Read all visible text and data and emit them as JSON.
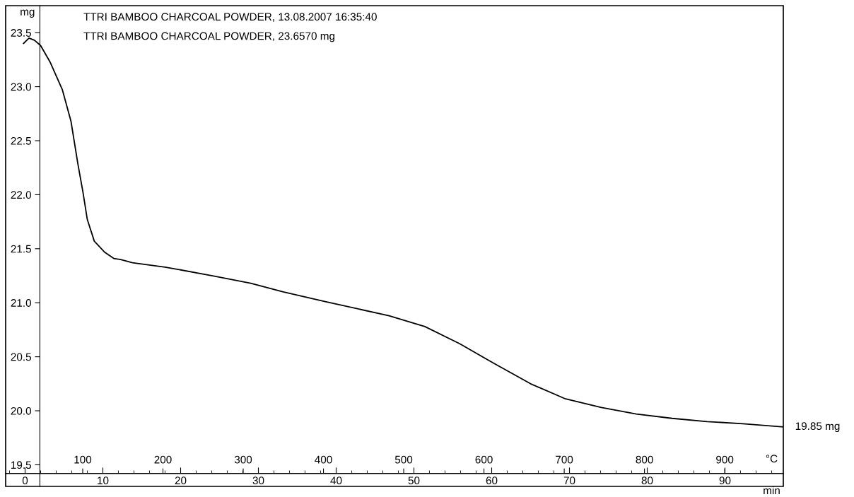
{
  "chart_data": {
    "type": "line",
    "ylabel": "mg",
    "xlabel": "min",
    "x2label": "°C",
    "xlim": [
      -2.5,
      97.5
    ],
    "xticks": [
      0,
      10,
      20,
      30,
      40,
      50,
      60,
      70,
      80,
      90
    ],
    "x2lim": [
      4,
      973
    ],
    "x2ticks": [
      100,
      200,
      300,
      400,
      500,
      600,
      700,
      800,
      900
    ],
    "ylim": [
      19.3,
      23.75
    ],
    "yticks": [
      {
        "value": 19.5,
        "label": "19.5"
      },
      {
        "value": 20.0,
        "label": "20.0"
      },
      {
        "value": 20.5,
        "label": "20.5"
      },
      {
        "value": 21.0,
        "label": "21.0"
      },
      {
        "value": 21.5,
        "label": "21.5"
      },
      {
        "value": 22.0,
        "label": "22.0"
      },
      {
        "value": 22.5,
        "label": "22.5"
      },
      {
        "value": 23.0,
        "label": "23.0"
      },
      {
        "value": 23.5,
        "label": "23.5"
      }
    ],
    "grid": false,
    "legend": false,
    "marker": "none",
    "line_style": "solid",
    "series": [
      {
        "color": "#000000",
        "x": [
          -0.2,
          0.5,
          1.2,
          2.0,
          3.2,
          4.8,
          5.9,
          6.8,
          7.45,
          8.0,
          8.9,
          10.2,
          11.4,
          12.3,
          13.8,
          18,
          24.1,
          29,
          33.2,
          38.6,
          46.8,
          51.4,
          55.9,
          60.5,
          65,
          69.5,
          74.1,
          78.6,
          83.2,
          87.7,
          92.3,
          97.5
        ],
        "values": [
          23.4,
          23.45,
          23.43,
          23.38,
          23.23,
          22.97,
          22.68,
          22.28,
          22.02,
          21.77,
          21.57,
          21.47,
          21.41,
          21.4,
          21.37,
          21.33,
          21.25,
          21.18,
          21.1,
          21.01,
          20.88,
          20.78,
          20.62,
          20.43,
          20.25,
          20.11,
          20.03,
          19.97,
          19.93,
          19.9,
          19.88,
          19.85
        ]
      }
    ],
    "annotations": [
      "TTRI BAMBOO CHARCOAL POWDER, 13.08.2007 16:35:40",
      "TTRI BAMBOO CHARCOAL POWDER, 23.6570 mg",
      {
        "text": "19.85 mg",
        "x": 97.5,
        "y": 19.85
      }
    ]
  }
}
